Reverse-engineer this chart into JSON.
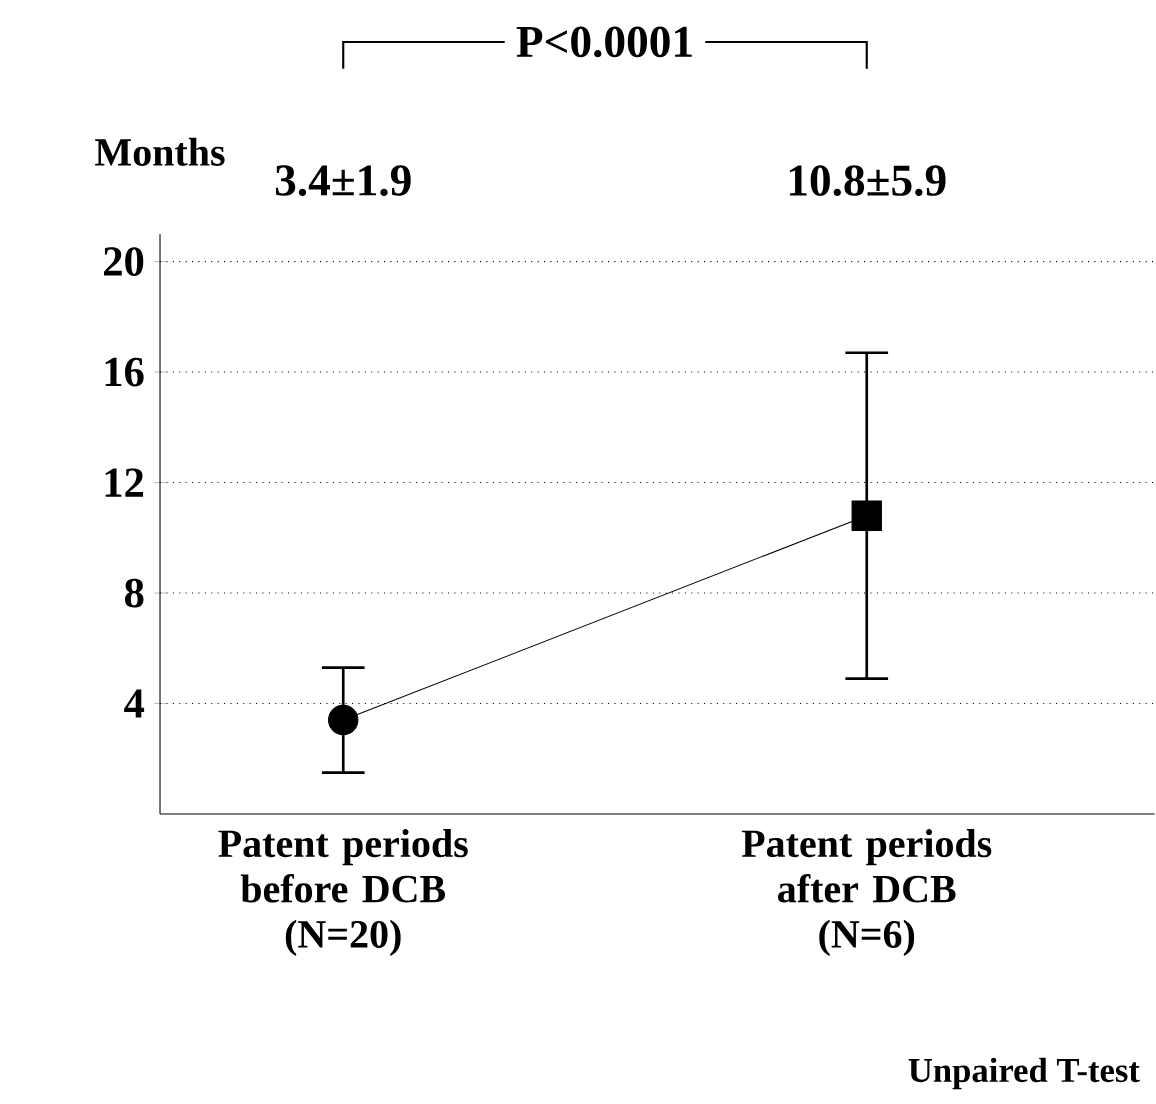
{
  "chart_data": {
    "type": "line",
    "ylabel": "Months",
    "categories": [
      "Patent periods before DCB (N=20)",
      "Patent periods after DCB (N=6)"
    ],
    "series": [
      {
        "color": "#000000",
        "values": [
          3.4,
          10.8
        ],
        "marker": "none"
      },
      {
        "type": "scatter",
        "color": "#000000",
        "values": [
          3.4,
          null
        ],
        "errors": [
          1.9,
          null
        ],
        "marker": "circle"
      },
      {
        "type": "scatter",
        "color": "#000000",
        "values": [
          null,
          10.8
        ],
        "errors": [
          null,
          5.9
        ],
        "marker": "square"
      }
    ],
    "ylim": [
      0,
      21
    ],
    "yticks": [
      4,
      8,
      12,
      16,
      20
    ],
    "grid": "y",
    "line_style": "solid",
    "annotations": [
      "P<0.0001",
      "Unpaired T-test",
      "3.4±1.9",
      "10.8±5.9"
    ]
  }
}
